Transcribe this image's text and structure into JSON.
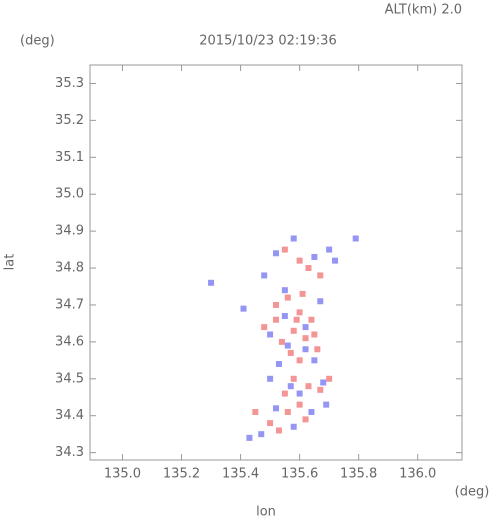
{
  "chart_data": {
    "type": "scatter",
    "title": "2015/10/23 02:19:36",
    "subtitle": "ALT(km) 2.0",
    "y_unit": "(deg)",
    "x_unit": "(deg)",
    "xlabel": "lon",
    "ylabel": "lat",
    "xlim": [
      134.89,
      136.15
    ],
    "ylim": [
      34.28,
      35.35
    ],
    "xticks": [
      {
        "value": 135.0,
        "label": "135.0"
      },
      135.2,
      135.4,
      135.6,
      135.8,
      {
        "value": 136.0,
        "label": "136.0"
      }
    ],
    "yticks": [
      34.3,
      34.4,
      34.5,
      34.6,
      34.7,
      34.8,
      34.9,
      {
        "value": 35.0,
        "label": "35.0"
      },
      35.1,
      35.2,
      35.3
    ],
    "grid": false,
    "series": [
      {
        "color": "#f07a7a",
        "x": [
          135.6,
          135.63,
          135.67,
          135.55,
          135.52,
          135.56,
          135.6,
          135.64,
          135.58,
          135.62,
          135.54,
          135.57,
          135.6,
          135.66,
          135.52,
          135.48,
          135.58,
          135.63,
          135.55,
          135.67,
          135.6,
          135.56,
          135.62,
          135.5,
          135.53,
          135.7,
          135.59,
          135.65,
          135.45,
          135.61
        ],
        "values": [
          34.82,
          34.8,
          34.78,
          34.85,
          34.7,
          34.72,
          34.68,
          34.66,
          34.63,
          34.61,
          34.6,
          34.57,
          34.55,
          34.58,
          34.66,
          34.64,
          34.5,
          34.48,
          34.46,
          34.47,
          34.43,
          34.41,
          34.39,
          34.38,
          34.36,
          34.5,
          34.66,
          34.62,
          34.41,
          34.73
        ]
      },
      {
        "color": "#7a7af0",
        "x": [
          135.52,
          135.58,
          135.7,
          135.72,
          135.65,
          135.48,
          135.55,
          135.5,
          135.62,
          135.56,
          135.65,
          135.53,
          135.5,
          135.57,
          135.68,
          135.6,
          135.52,
          135.64,
          135.58,
          135.47,
          135.43,
          135.3,
          135.79,
          135.67,
          135.41,
          135.62,
          135.55,
          135.69
        ],
        "values": [
          34.84,
          34.88,
          34.85,
          34.82,
          34.83,
          34.78,
          34.67,
          34.62,
          34.64,
          34.59,
          34.55,
          34.54,
          34.5,
          34.48,
          34.49,
          34.46,
          34.42,
          34.41,
          34.37,
          34.35,
          34.34,
          34.76,
          34.88,
          34.71,
          34.69,
          34.58,
          34.74,
          34.43
        ]
      }
    ]
  }
}
